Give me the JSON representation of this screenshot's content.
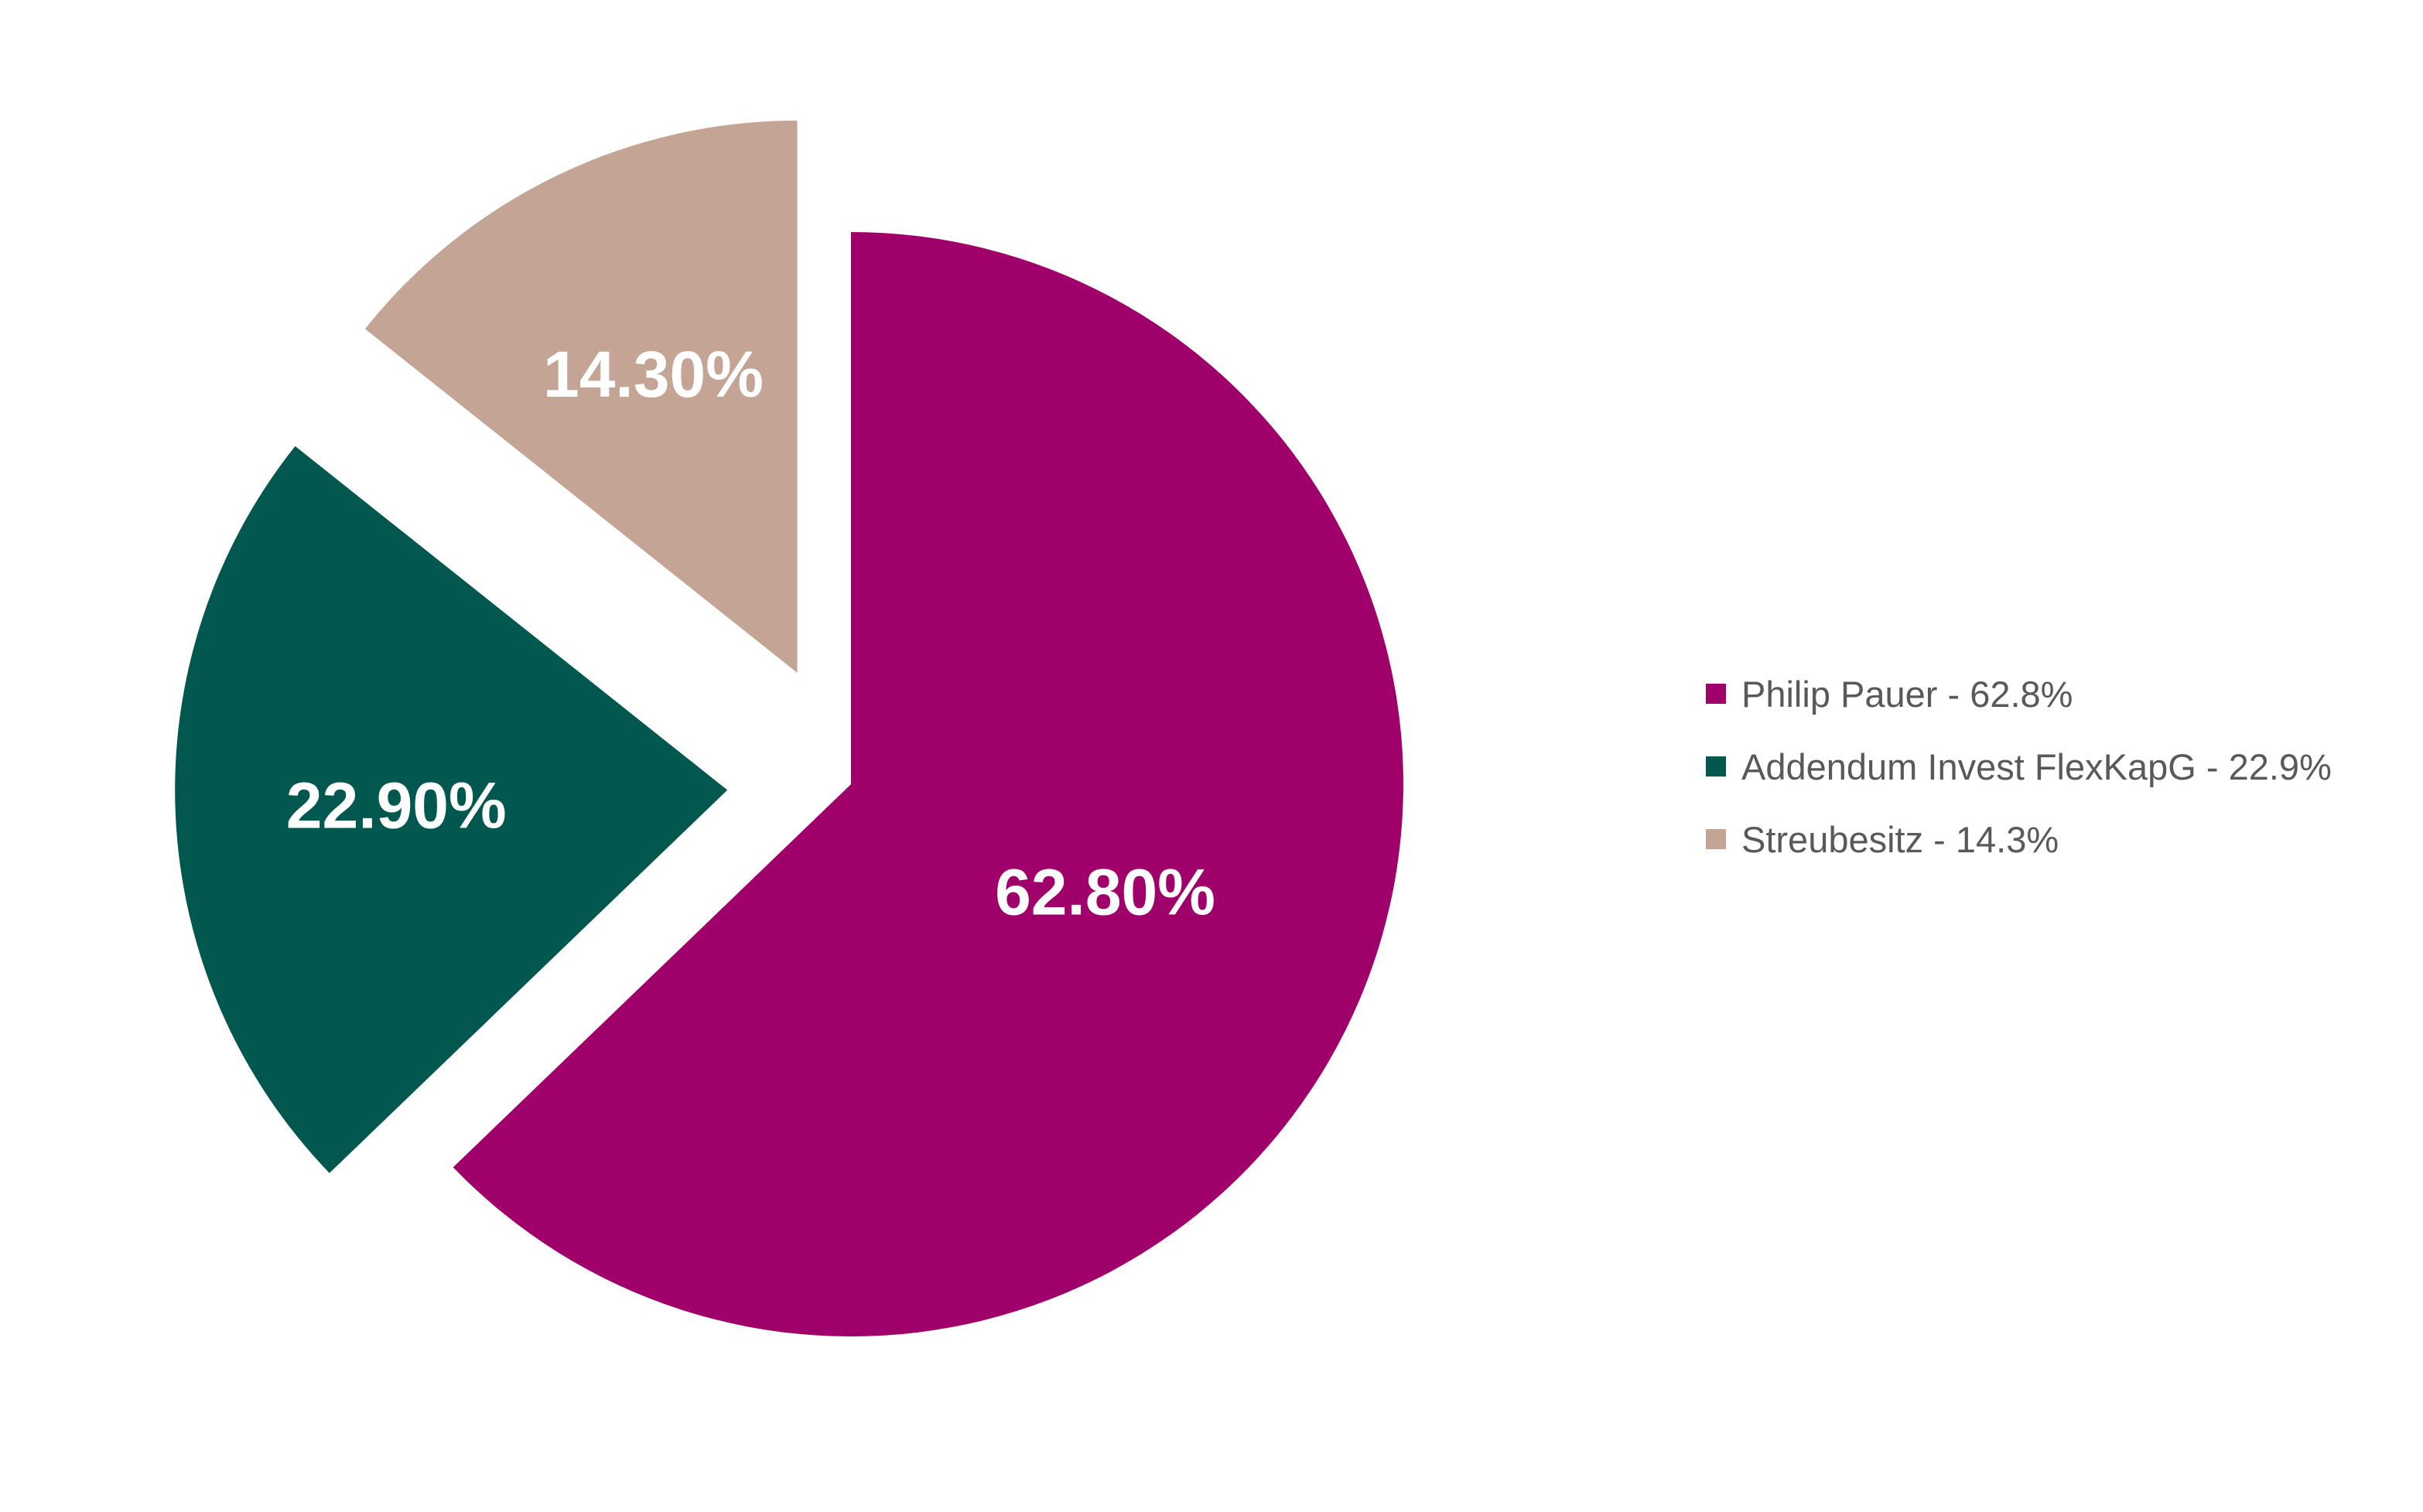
{
  "chart_data": {
    "type": "pie",
    "exploded": true,
    "start_angle": "top",
    "direction": "clockwise",
    "slices": [
      {
        "name": "Philip Pauer",
        "value": 62.8,
        "data_label": "62.80%",
        "legend_label": "Philip Pauer - 62.8%",
        "color": "#A0006A"
      },
      {
        "name": "Addendum Invest FlexKapG",
        "value": 22.9,
        "data_label": "22.90%",
        "legend_label": "Addendum Invest FlexKapG - 22.9%",
        "color": "#02574F"
      },
      {
        "name": "Streubesitz",
        "value": 14.3,
        "data_label": "14.30%",
        "legend_label": "Streubesitz - 14.3%",
        "color": "#C4A595"
      }
    ],
    "legend_position": "right"
  }
}
